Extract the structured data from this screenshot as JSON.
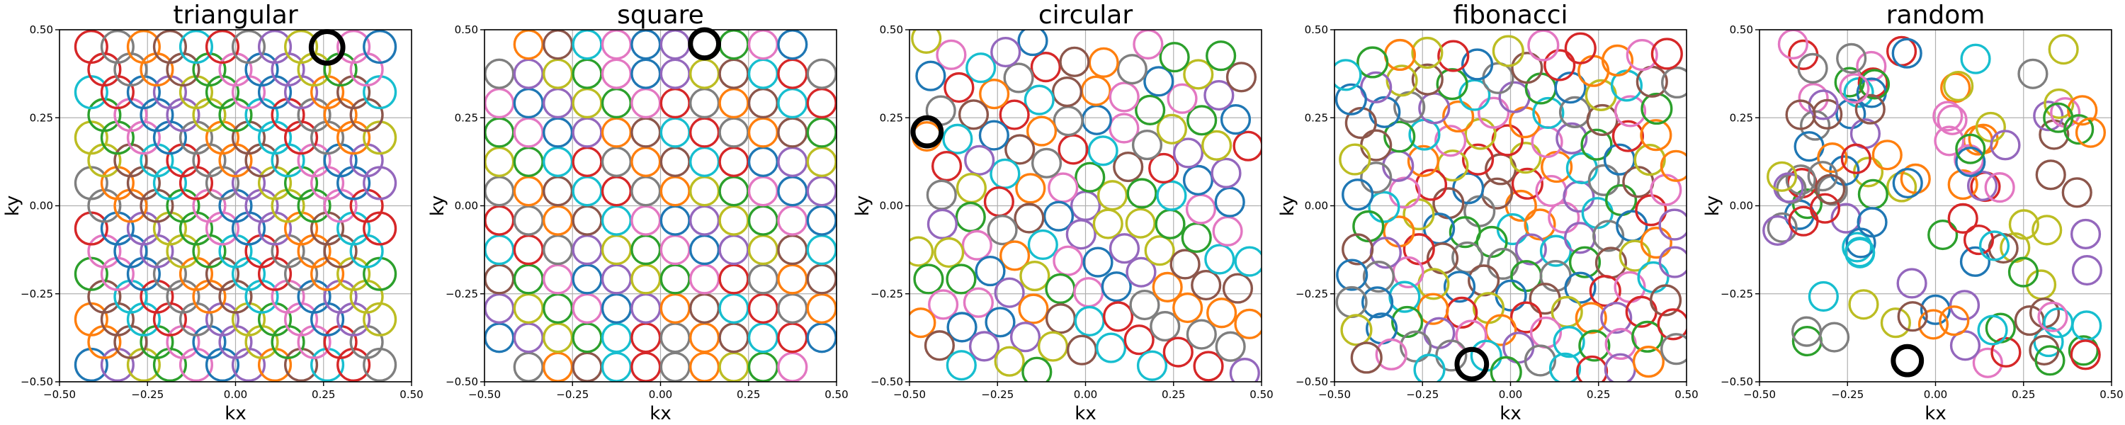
{
  "figure": {
    "palette": [
      "#1f77b4",
      "#ff7f0e",
      "#2ca02c",
      "#d62728",
      "#9467bd",
      "#8c564b",
      "#e377c2",
      "#7f7f7f",
      "#bcbd22",
      "#17becf"
    ],
    "highlight_color": "#000000"
  },
  "chart_data": [
    {
      "type": "scatter",
      "title": "triangular",
      "xlabel": "kx",
      "ylabel": "ky",
      "xlim": [
        -0.5,
        0.5
      ],
      "ylim": [
        -0.5,
        0.5
      ],
      "xticks": [
        -0.5,
        -0.25,
        0.0,
        0.25,
        0.5
      ],
      "yticks": [
        -0.5,
        -0.25,
        0.0,
        0.25,
        0.5
      ],
      "xtick_labels": [
        "−0.50",
        "−0.25",
        "0.00",
        "0.25",
        "0.50"
      ],
      "ytick_labels": [
        "−0.50",
        "−0.25",
        "0.00",
        "0.25",
        "0.50"
      ],
      "grid": true,
      "marker": "hollow circle",
      "marker_radius": 0.045,
      "layout": "triangular lattice",
      "spacing": 0.0745,
      "points_count": 169,
      "highlight": {
        "kx": 0.26,
        "ky": 0.45
      }
    },
    {
      "type": "scatter",
      "title": "square",
      "xlabel": "kx",
      "ylabel": "ky",
      "xlim": [
        -0.5,
        0.5
      ],
      "ylim": [
        -0.5,
        0.5
      ],
      "xticks": [
        -0.5,
        -0.25,
        0.0,
        0.25,
        0.5
      ],
      "yticks": [
        -0.5,
        -0.25,
        0.0,
        0.25,
        0.5
      ],
      "xtick_labels": [
        "−0.50",
        "−0.25",
        "0.00",
        "0.25",
        "0.50"
      ],
      "ytick_labels": [
        "−0.50",
        "−0.25",
        "0.00",
        "0.25",
        "0.50"
      ],
      "grid": true,
      "marker": "hollow circle",
      "marker_radius": 0.04,
      "layout": "square lattice inside disk",
      "spacing": 0.0833,
      "points_count": 136,
      "highlight": {
        "kx": 0.125,
        "ky": 0.46
      }
    },
    {
      "type": "scatter",
      "title": "circular",
      "xlabel": "kx",
      "ylabel": "ky",
      "xlim": [
        -0.5,
        0.5
      ],
      "ylim": [
        -0.5,
        0.5
      ],
      "xticks": [
        -0.5,
        -0.25,
        0.0,
        0.25,
        0.5
      ],
      "yticks": [
        -0.5,
        -0.25,
        0.0,
        0.25,
        0.5
      ],
      "xtick_labels": [
        "−0.50",
        "−0.25",
        "0.00",
        "0.25",
        "0.50"
      ],
      "ytick_labels": [
        "−0.50",
        "−0.25",
        "0.00",
        "0.25",
        "0.50"
      ],
      "grid": true,
      "marker": "hollow circle",
      "marker_radius": 0.04,
      "layout": "concentric rings",
      "points_count": 153,
      "highlight": {
        "kx": -0.45,
        "ky": 0.21
      }
    },
    {
      "type": "scatter",
      "title": "fibonacci",
      "xlabel": "kx",
      "ylabel": "ky",
      "xlim": [
        -0.5,
        0.5
      ],
      "ylim": [
        -0.5,
        0.5
      ],
      "xticks": [
        -0.5,
        -0.25,
        0.0,
        0.25,
        0.5
      ],
      "yticks": [
        -0.5,
        -0.25,
        0.0,
        0.25,
        0.5
      ],
      "xtick_labels": [
        "−0.50",
        "−0.25",
        "0.00",
        "0.25",
        "0.50"
      ],
      "ytick_labels": [
        "−0.50",
        "−0.25",
        "0.00",
        "0.25",
        "0.50"
      ],
      "grid": true,
      "marker": "hollow circle",
      "marker_radius": 0.042,
      "layout": "fibonacci (golden-angle) spiral",
      "points_count": 168,
      "highlight": {
        "kx": -0.11,
        "ky": -0.45
      }
    },
    {
      "type": "scatter",
      "title": "random",
      "xlabel": "kx",
      "ylabel": "ky",
      "xlim": [
        -0.5,
        0.5
      ],
      "ylim": [
        -0.5,
        0.5
      ],
      "xticks": [
        -0.5,
        -0.25,
        0.0,
        0.25,
        0.5
      ],
      "yticks": [
        -0.5,
        -0.25,
        0.0,
        0.25,
        0.5
      ],
      "xtick_labels": [
        "−0.50",
        "−0.25",
        "0.00",
        "0.25",
        "0.50"
      ],
      "ytick_labels": [
        "−0.50",
        "−0.25",
        "0.00",
        "0.25",
        "0.50"
      ],
      "grid": true,
      "marker": "hollow circle",
      "marker_radius": 0.04,
      "layout": "random",
      "points_count": 120,
      "highlight": {
        "kx": -0.08,
        "ky": -0.44
      }
    }
  ]
}
